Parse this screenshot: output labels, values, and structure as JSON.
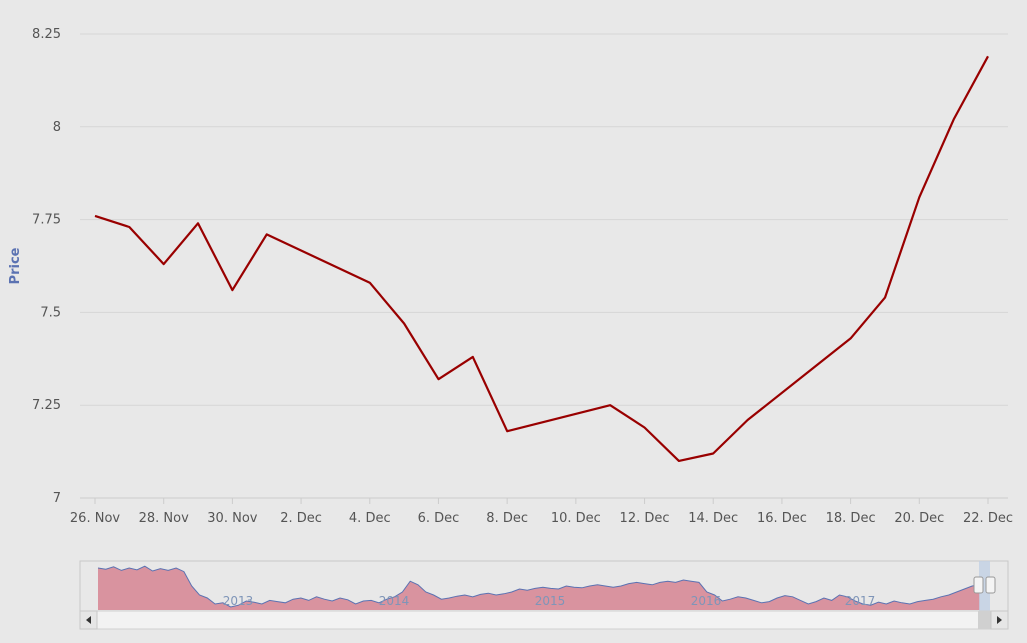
{
  "chart_data": {
    "type": "line",
    "ylabel": "Price",
    "ylim": [
      7,
      8.25
    ],
    "y_ticks": [
      "8.25",
      "8",
      "7.75",
      "7.5",
      "7.25",
      "7"
    ],
    "x_tick_labels": [
      "26. Nov",
      "28. Nov",
      "30. Nov",
      "2. Dec",
      "4. Dec",
      "6. Dec",
      "8. Dec",
      "10. Dec",
      "12. Dec",
      "14. Dec",
      "16. Dec",
      "18. Dec",
      "20. Dec",
      "22. Dec"
    ],
    "x_dates": [
      "2017-11-26",
      "2017-11-27",
      "2017-11-28",
      "2017-11-29",
      "2017-11-30",
      "2017-12-01",
      "2017-12-04",
      "2017-12-05",
      "2017-12-06",
      "2017-12-07",
      "2017-12-08",
      "2017-12-11",
      "2017-12-12",
      "2017-12-13",
      "2017-12-14",
      "2017-12-15",
      "2017-12-18",
      "2017-12-19",
      "2017-12-20",
      "2017-12-21",
      "2017-12-22"
    ],
    "series": [
      {
        "color": "#990000",
        "values": [
          7.76,
          7.73,
          7.63,
          7.74,
          7.56,
          7.71,
          7.58,
          7.47,
          7.32,
          7.38,
          7.18,
          7.25,
          7.19,
          7.1,
          7.12,
          7.21,
          7.43,
          7.54,
          7.81,
          8.02,
          8.19
        ]
      }
    ],
    "grid": true,
    "legend": "none",
    "navigator": {
      "year_labels": [
        "2013",
        "2014",
        "2015",
        "2016",
        "2017"
      ],
      "fill_color": "#d9939f",
      "line_color": "#5b72b2",
      "values": [
        7.9,
        7.88,
        7.92,
        7.86,
        7.9,
        7.87,
        7.93,
        7.85,
        7.89,
        7.86,
        7.9,
        7.84,
        7.6,
        7.45,
        7.4,
        7.3,
        7.32,
        7.25,
        7.28,
        7.35,
        7.33,
        7.3,
        7.36,
        7.34,
        7.32,
        7.38,
        7.4,
        7.36,
        7.42,
        7.38,
        7.35,
        7.4,
        7.37,
        7.3,
        7.35,
        7.36,
        7.32,
        7.38,
        7.42,
        7.5,
        7.68,
        7.62,
        7.5,
        7.45,
        7.38,
        7.4,
        7.43,
        7.45,
        7.42,
        7.46,
        7.48,
        7.45,
        7.47,
        7.5,
        7.55,
        7.53,
        7.56,
        7.58,
        7.56,
        7.55,
        7.6,
        7.58,
        7.57,
        7.6,
        7.62,
        7.6,
        7.58,
        7.6,
        7.64,
        7.66,
        7.64,
        7.62,
        7.66,
        7.68,
        7.66,
        7.7,
        7.68,
        7.66,
        7.5,
        7.45,
        7.35,
        7.38,
        7.42,
        7.4,
        7.36,
        7.32,
        7.34,
        7.4,
        7.44,
        7.42,
        7.36,
        7.3,
        7.34,
        7.4,
        7.36,
        7.45,
        7.42,
        7.35,
        7.3,
        7.28,
        7.33,
        7.3,
        7.35,
        7.32,
        7.3,
        7.34,
        7.36,
        7.38,
        7.42,
        7.45,
        7.5,
        7.55,
        7.6,
        7.62
      ]
    }
  }
}
